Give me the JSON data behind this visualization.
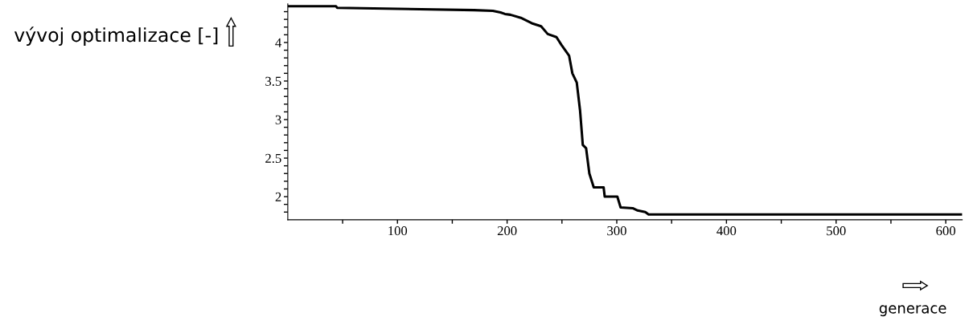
{
  "chart_data": {
    "type": "line",
    "xlabel": "generace",
    "ylabel": "vývoj optimalizace [-]",
    "x": [
      1,
      44,
      45,
      170,
      187,
      194,
      198,
      203,
      212.5,
      222.5,
      231,
      237,
      245,
      249.5,
      256.5,
      259.5,
      263.5,
      266.5,
      269,
      272,
      275,
      279,
      288,
      289,
      300.5,
      303.5,
      314.5,
      319,
      326,
      329,
      614
    ],
    "series": [
      {
        "color": "#000000",
        "values": [
          4.47,
          4.47,
          4.45,
          4.42,
          4.41,
          4.39,
          4.37,
          4.36,
          4.32,
          4.25,
          4.21,
          4.11,
          4.07,
          3.97,
          3.83,
          3.6,
          3.48,
          3.12,
          2.67,
          2.63,
          2.3,
          2.12,
          2.12,
          2.0,
          2.0,
          1.86,
          1.85,
          1.82,
          1.8,
          1.77,
          1.77
        ]
      }
    ],
    "xlim": [
      0,
      615
    ],
    "ylim": [
      1.7,
      4.5
    ],
    "xticks": [
      {
        "value": 50,
        "label": null
      },
      100,
      {
        "value": 150,
        "label": null
      },
      200,
      {
        "value": 250,
        "label": null
      },
      300,
      {
        "value": 350,
        "label": null
      },
      400,
      {
        "value": 450,
        "label": null
      },
      500,
      {
        "value": 550,
        "label": null
      },
      600
    ],
    "yticks": [
      {
        "value": 1.8,
        "label": null
      },
      {
        "value": 1.9,
        "label": null
      },
      2,
      {
        "value": 2.1,
        "label": null
      },
      {
        "value": 2.2,
        "label": null
      },
      {
        "value": 2.3,
        "label": null
      },
      {
        "value": 2.4,
        "label": null
      },
      2.5,
      {
        "value": 2.6,
        "label": null
      },
      {
        "value": 2.7,
        "label": null
      },
      {
        "value": 2.8,
        "label": null
      },
      {
        "value": 2.9,
        "label": null
      },
      3,
      {
        "value": 3.1,
        "label": null
      },
      {
        "value": 3.2,
        "label": null
      },
      {
        "value": 3.3,
        "label": null
      },
      {
        "value": 3.4,
        "label": null
      },
      3.5,
      {
        "value": 3.6,
        "label": null
      },
      {
        "value": 3.7,
        "label": null
      },
      {
        "value": 3.8,
        "label": null
      },
      {
        "value": 3.9,
        "label": null
      },
      4,
      {
        "value": 4.1,
        "label": null
      },
      {
        "value": 4.2,
        "label": null
      },
      {
        "value": 4.3,
        "label": null
      },
      {
        "value": 4.4,
        "label": null
      }
    ],
    "grid": false,
    "legend": false,
    "marker": "none",
    "line_style": "solid"
  }
}
